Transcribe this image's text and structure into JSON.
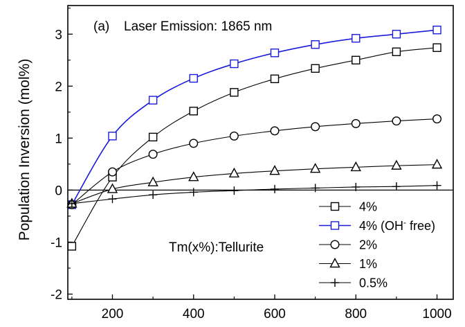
{
  "chart_data": {
    "type": "line",
    "title": "",
    "panel_label": "(a)",
    "annotation_top": "Laser Emission: 1865 nm",
    "annotation_sample": "Tm(x%):Tellurite",
    "xlabel": "",
    "ylabel": "Population Inversion (mol%)",
    "xlim": [
      90,
      1040
    ],
    "ylim": [
      -2.1,
      3.55
    ],
    "xticks": [
      200,
      400,
      600,
      800,
      1000
    ],
    "yticks": [
      -2,
      -1,
      0,
      1,
      2,
      3
    ],
    "x_tick_labels": [
      "200",
      "400",
      "600",
      "800",
      "1000"
    ],
    "y_tick_labels": [
      "-2",
      "-1",
      "0",
      "1",
      "2",
      "3"
    ],
    "grid": false,
    "legend_position": "bottom-right",
    "series": [
      {
        "name": "4%",
        "marker": "square",
        "color": "#000000",
        "x": [
          100,
          200,
          300,
          400,
          500,
          600,
          700,
          800,
          900,
          1000
        ],
        "y": [
          -1.08,
          0.25,
          1.02,
          1.52,
          1.88,
          2.14,
          2.34,
          2.5,
          2.66,
          2.74
        ]
      },
      {
        "name": "4% (OH- free)",
        "name_main": "4% (OH",
        "name_sup": "-",
        "name_tail": " free)",
        "marker": "square",
        "color": "#1a1adc",
        "x": [
          100,
          200,
          300,
          400,
          500,
          600,
          700,
          800,
          900,
          1000
        ],
        "y": [
          -0.28,
          1.04,
          1.73,
          2.15,
          2.43,
          2.64,
          2.8,
          2.92,
          3.0,
          3.08
        ]
      },
      {
        "name": "2%",
        "marker": "circle",
        "color": "#000000",
        "x": [
          100,
          200,
          300,
          400,
          500,
          600,
          700,
          800,
          900,
          1000
        ],
        "y": [
          -0.28,
          0.35,
          0.69,
          0.9,
          1.04,
          1.14,
          1.22,
          1.28,
          1.33,
          1.37
        ]
      },
      {
        "name": "1%",
        "marker": "triangle",
        "color": "#000000",
        "x": [
          100,
          200,
          300,
          400,
          500,
          600,
          700,
          800,
          900,
          1000
        ],
        "y": [
          -0.26,
          0.02,
          0.15,
          0.25,
          0.32,
          0.37,
          0.41,
          0.44,
          0.47,
          0.49
        ]
      },
      {
        "name": "0.5%",
        "marker": "plus",
        "color": "#000000",
        "x": [
          100,
          200,
          300,
          400,
          500,
          600,
          700,
          800,
          900,
          1000
        ],
        "y": [
          -0.26,
          -0.17,
          -0.09,
          -0.04,
          -0.01,
          0.02,
          0.04,
          0.06,
          0.07,
          0.09
        ]
      }
    ]
  }
}
